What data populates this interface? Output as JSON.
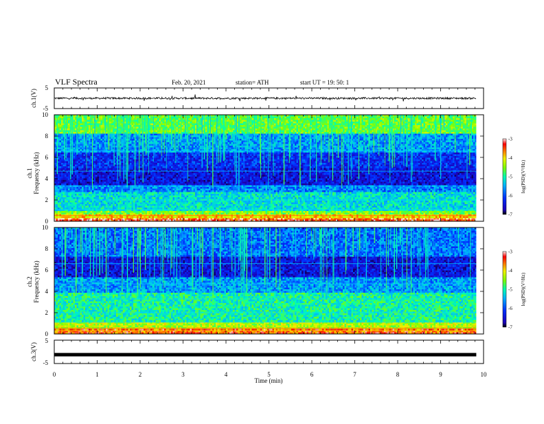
{
  "header": {
    "title": "VLF Spectra",
    "date": "Feb. 20, 2021",
    "station": "station= ATH",
    "start_ut": "start  UT =   19: 50: 1"
  },
  "colors": {
    "colormap": [
      "#1c00b8",
      "#0018ff",
      "#0088ff",
      "#00d8ff",
      "#00ff90",
      "#8cff00",
      "#f0f000",
      "#ff7800",
      "#ff0000",
      "#ffe0e0"
    ]
  },
  "chart_data": [
    {
      "type": "line",
      "panel": "ch1-waveform",
      "ylabel": "ch.1(V)",
      "ylim": [
        -5,
        5
      ],
      "yticks": [
        "5",
        "-5"
      ],
      "xlim": [
        0,
        10
      ],
      "baseline": 0,
      "approx_amplitude": 1
    },
    {
      "type": "heatmap",
      "panel": "ch1-spectrogram",
      "ylabel_line1": "ch.1",
      "ylabel_line2": "Frequency (kHz)",
      "ylim": [
        0,
        10
      ],
      "yticks": [
        "0",
        "2",
        "4",
        "6",
        "8",
        "10"
      ],
      "xlim": [
        0,
        10
      ],
      "data_extent_min": 9.83,
      "bands_khz": [
        {
          "from": 0.0,
          "to": 0.4,
          "level": -3.3
        },
        {
          "from": 0.4,
          "to": 0.6,
          "level": -3.9
        },
        {
          "from": 0.6,
          "to": 1.0,
          "level": -4.5
        },
        {
          "from": 1.0,
          "to": 2.7,
          "level": -5.2
        },
        {
          "from": 2.7,
          "to": 3.4,
          "level": -5.7
        },
        {
          "from": 3.4,
          "to": 5.0,
          "level": -6.4
        },
        {
          "from": 5.0,
          "to": 6.4,
          "level": -6.2
        },
        {
          "from": 6.4,
          "to": 8.2,
          "level": -5.6
        },
        {
          "from": 8.2,
          "to": 10.0,
          "level": -4.6
        }
      ],
      "colorbar": {
        "label": "log(PSD)(V²/Hz)",
        "ticks": [
          "-3",
          "-4",
          "-5",
          "-6",
          "-7"
        ],
        "range": [
          -7,
          -3
        ]
      }
    },
    {
      "type": "heatmap",
      "panel": "ch2-spectrogram",
      "ylabel_line1": "ch.2",
      "ylabel_line2": "Frequency (kHz)",
      "ylim": [
        0,
        10
      ],
      "yticks": [
        "0",
        "2",
        "4",
        "6",
        "8",
        "10"
      ],
      "xlim": [
        0,
        10
      ],
      "data_extent_min": 9.83,
      "bands_khz": [
        {
          "from": 0.0,
          "to": 0.5,
          "level": -3.5
        },
        {
          "from": 0.5,
          "to": 1.2,
          "level": -4.3
        },
        {
          "from": 1.2,
          "to": 3.8,
          "level": -5.0
        },
        {
          "from": 3.8,
          "to": 5.4,
          "level": -5.6
        },
        {
          "from": 5.4,
          "to": 7.2,
          "level": -6.4
        },
        {
          "from": 7.2,
          "to": 10.0,
          "level": -5.8
        }
      ],
      "colorbar": {
        "label": "log(PSD)(V²/Hz)",
        "ticks": [
          "-3",
          "-4",
          "-5",
          "-6",
          "-7"
        ],
        "range": [
          -7,
          -3
        ]
      }
    },
    {
      "type": "line",
      "panel": "ch3-waveform",
      "ylabel": "ch.3(V)",
      "ylim": [
        -5,
        5
      ],
      "yticks": [
        "5",
        "-5"
      ],
      "xlim": [
        0,
        10
      ],
      "constant_value": -1.2,
      "xlabel": "Time  (min)",
      "xticks": [
        "0",
        "1",
        "2",
        "3",
        "4",
        "5",
        "6",
        "7",
        "8",
        "9",
        "10"
      ]
    }
  ]
}
